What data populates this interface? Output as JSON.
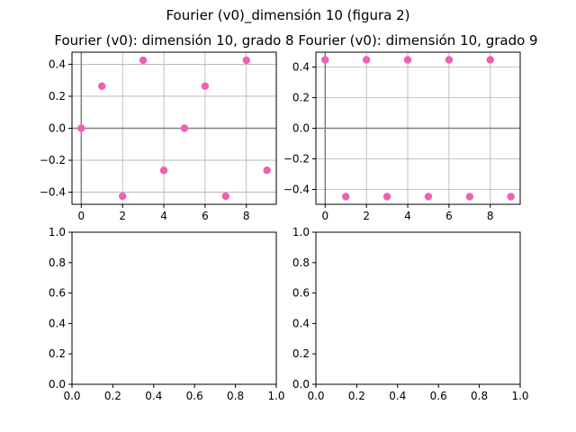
{
  "suptitle": "Fourier (v0)_dimensión 10 (figura 2)",
  "colors": {
    "marker": "#ee5fb5",
    "grid": "#b0b0b0",
    "zero_line": "#808080",
    "frame": "#000000"
  },
  "chart_data": [
    {
      "type": "scatter",
      "title": "Fourier (v0): dimensión 10, grado 8",
      "xlabel": "",
      "ylabel": "",
      "grid": true,
      "xlim": [
        -0.45,
        9.45
      ],
      "ylim": [
        -0.4755,
        0.4755
      ],
      "xticks": [
        0,
        2,
        4,
        6,
        8
      ],
      "yticks": [
        -0.4,
        -0.2,
        0.0,
        0.2,
        0.4
      ],
      "xtick_labels": [
        "0",
        "2",
        "4",
        "6",
        "8"
      ],
      "ytick_labels": [
        "−0.4",
        "−0.2",
        "0.0",
        "0.2",
        "0.4"
      ],
      "x": [
        0,
        1,
        2,
        3,
        4,
        5,
        6,
        7,
        8,
        9
      ],
      "y": [
        0.0,
        0.263,
        -0.425,
        0.425,
        -0.263,
        0.0,
        0.263,
        -0.425,
        0.425,
        -0.263
      ]
    },
    {
      "type": "scatter",
      "title": "Fourier (v0): dimensión 10, grado 9",
      "xlabel": "",
      "ylabel": "",
      "grid": true,
      "xlim": [
        -0.45,
        9.45
      ],
      "ylim": [
        -0.497,
        0.497
      ],
      "xticks": [
        0,
        2,
        4,
        6,
        8
      ],
      "yticks": [
        -0.4,
        -0.2,
        0.0,
        0.2,
        0.4
      ],
      "xtick_labels": [
        "0",
        "2",
        "4",
        "6",
        "8"
      ],
      "ytick_labels": [
        "−0.4",
        "−0.2",
        "0.0",
        "0.2",
        "0.4"
      ],
      "x": [
        0,
        1,
        2,
        3,
        4,
        5,
        6,
        7,
        8,
        9
      ],
      "y": [
        0.447,
        -0.447,
        0.447,
        -0.447,
        0.447,
        -0.447,
        0.447,
        -0.447,
        0.447,
        -0.447
      ]
    },
    {
      "type": "scatter",
      "title": "",
      "grid": false,
      "xlim": [
        0,
        1
      ],
      "ylim": [
        0,
        1
      ],
      "xticks": [
        0,
        0.2,
        0.4,
        0.6,
        0.8,
        1.0
      ],
      "yticks": [
        0,
        0.2,
        0.4,
        0.6,
        0.8,
        1.0
      ],
      "xtick_labels": [
        "0.0",
        "0.2",
        "0.4",
        "0.6",
        "0.8",
        "1.0"
      ],
      "ytick_labels": [
        "0.0",
        "0.2",
        "0.4",
        "0.6",
        "0.8",
        "1.0"
      ],
      "x": [],
      "y": []
    },
    {
      "type": "scatter",
      "title": "",
      "grid": false,
      "xlim": [
        0,
        1
      ],
      "ylim": [
        0,
        1
      ],
      "xticks": [
        0,
        0.2,
        0.4,
        0.6,
        0.8,
        1.0
      ],
      "yticks": [
        0,
        0.2,
        0.4,
        0.6,
        0.8,
        1.0
      ],
      "xtick_labels": [
        "0.0",
        "0.2",
        "0.4",
        "0.6",
        "0.8",
        "1.0"
      ],
      "ytick_labels": [
        "0.0",
        "0.2",
        "0.4",
        "0.6",
        "0.8",
        "1.0"
      ],
      "x": [],
      "y": []
    }
  ]
}
